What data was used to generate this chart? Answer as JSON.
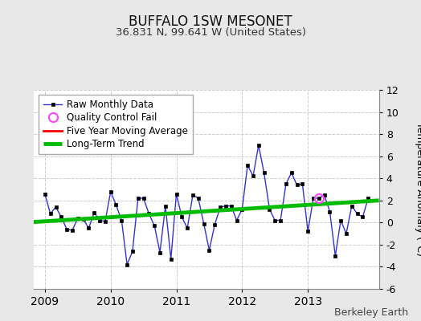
{
  "title": "BUFFALO 1SW MESONET",
  "subtitle": "36.831 N, 99.641 W (United States)",
  "ylabel": "Temperature Anomaly (°C)",
  "credit": "Berkeley Earth",
  "fig_background": "#e8e8e8",
  "plot_background": "#ffffff",
  "ylim": [
    -6,
    12
  ],
  "yticks": [
    -6,
    -4,
    -2,
    0,
    2,
    4,
    6,
    8,
    10,
    12
  ],
  "xlim_start": 2008.83,
  "xlim_end": 2014.08,
  "raw_x": [
    2009.0,
    2009.083,
    2009.167,
    2009.25,
    2009.333,
    2009.417,
    2009.5,
    2009.583,
    2009.667,
    2009.75,
    2009.833,
    2009.917,
    2010.0,
    2010.083,
    2010.167,
    2010.25,
    2010.333,
    2010.417,
    2010.5,
    2010.583,
    2010.667,
    2010.75,
    2010.833,
    2010.917,
    2011.0,
    2011.083,
    2011.167,
    2011.25,
    2011.333,
    2011.417,
    2011.5,
    2011.583,
    2011.667,
    2011.75,
    2011.833,
    2011.917,
    2012.0,
    2012.083,
    2012.167,
    2012.25,
    2012.333,
    2012.417,
    2012.5,
    2012.583,
    2012.667,
    2012.75,
    2012.833,
    2012.917,
    2013.0,
    2013.083,
    2013.167,
    2013.25,
    2013.333,
    2013.417,
    2013.5,
    2013.583,
    2013.667,
    2013.75,
    2013.833,
    2013.917
  ],
  "raw_y": [
    2.6,
    0.8,
    1.4,
    0.5,
    -0.6,
    -0.7,
    0.4,
    0.3,
    -0.5,
    0.9,
    0.2,
    0.1,
    2.8,
    1.6,
    0.2,
    -3.8,
    -2.6,
    2.2,
    2.2,
    0.8,
    -0.3,
    -2.7,
    1.5,
    -3.3,
    2.6,
    0.5,
    -0.5,
    2.5,
    2.2,
    -0.1,
    -2.5,
    -0.2,
    1.4,
    1.5,
    1.5,
    0.2,
    1.2,
    5.2,
    4.2,
    7.0,
    4.5,
    1.2,
    0.2,
    0.2,
    3.5,
    4.5,
    3.4,
    3.5,
    -0.8,
    2.2,
    2.2,
    2.5,
    1.0,
    -3.0,
    0.2,
    -1.0,
    1.5,
    0.8,
    0.5,
    2.2
  ],
  "qc_fail_x": [
    2013.167
  ],
  "qc_fail_y": [
    2.2
  ],
  "trend_x": [
    2008.83,
    2014.08
  ],
  "trend_y": [
    0.05,
    2.0
  ],
  "line_color": "#3333cc",
  "marker_color": "#000000",
  "trend_color": "#00bb00",
  "qc_color": "#ff44ff",
  "mavg_color": "#ff0000",
  "grid_color": "#cccccc",
  "xtick_positions": [
    2009,
    2010,
    2011,
    2012,
    2013
  ]
}
